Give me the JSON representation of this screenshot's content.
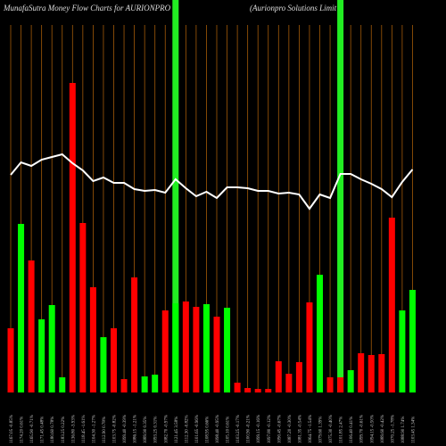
{
  "chart_data": {
    "type": "bar",
    "title": "MunafaSutra  Money  Flow  Charts for AURIONPRO",
    "subtitle": "(Aurionpro  Solutions Limit",
    "categories": [
      "1167.05 -0.85%",
      "1174.20 0.61%",
      "1165.90 -0.71%",
      "1171.45 0.48%",
      "1180.60 0.78%",
      "1183.25 0.22%",
      "1136.80 -3.93%",
      "1118.45 -1.61%",
      "1104.30 -1.27%",
      "1112.90 0.78%",
      "1103.75 -0.82%",
      "1099.40 -0.39%",
      "1086.15 -1.21%",
      "1089.90 0.35%",
      "1093.25 0.31%",
      "1082.70 -0.97%",
      "1121.45 3.58%",
      "1112.30 -0.82%",
      "1101.65 -0.96%",
      "1108.95 0.66%",
      "1098.40 -0.95%",
      "1105.10 0.61%",
      "1103.25 -0.17%",
      "1100.90 -0.21%",
      "1099.15 -0.16%",
      "1097.80 -0.12%",
      "1090.45 -0.67%",
      "1087.20 -0.30%",
      "1081.35 -0.54%",
      "1064.75 -1.54%",
      "1079.60 1.39%",
      "1075.30 -0.40%",
      "1101.85 2.47%",
      "1106.40 0.41%",
      "1099.70 -0.61%",
      "1094.15 -0.50%",
      "1089.60 -0.42%",
      "1070.25 -1.78%",
      "1088.90 1.74%",
      "1103.45 1.34%"
    ],
    "values": [
      72,
      189,
      148,
      82,
      98,
      17,
      347,
      190,
      118,
      62,
      72,
      15,
      129,
      18,
      20,
      92,
      100,
      102,
      96,
      99,
      85,
      95,
      11,
      5,
      4,
      4,
      35,
      21,
      34,
      101,
      132,
      17,
      17,
      25,
      44,
      42,
      43,
      196,
      92,
      115
    ],
    "bar_colors": [
      "red",
      "lime",
      "red",
      "lime",
      "lime",
      "lime",
      "red",
      "red",
      "red",
      "lime",
      "red",
      "red",
      "red",
      "lime",
      "lime",
      "red",
      "lime",
      "red",
      "red",
      "lime",
      "red",
      "lime",
      "red",
      "red",
      "red",
      "red",
      "red",
      "red",
      "red",
      "red",
      "lime",
      "red",
      "red",
      "lime",
      "red",
      "red",
      "red",
      "red",
      "lime",
      "lime"
    ],
    "line_values": [
      244,
      258,
      254,
      261,
      264,
      267,
      257,
      249,
      237,
      241,
      235,
      235,
      228,
      226,
      227,
      224,
      239,
      229,
      220,
      225,
      218,
      230,
      230,
      229,
      226,
      226,
      223,
      224,
      222,
      206,
      222,
      218,
      245,
      245,
      239,
      234,
      228,
      219,
      236,
      250
    ],
    "line_color": "#ffffff",
    "highlight_indices": [
      16,
      32
    ],
    "highlight_color": "#22ee22",
    "grid_color": "#a35a08",
    "ylim": [
      0,
      350
    ]
  }
}
